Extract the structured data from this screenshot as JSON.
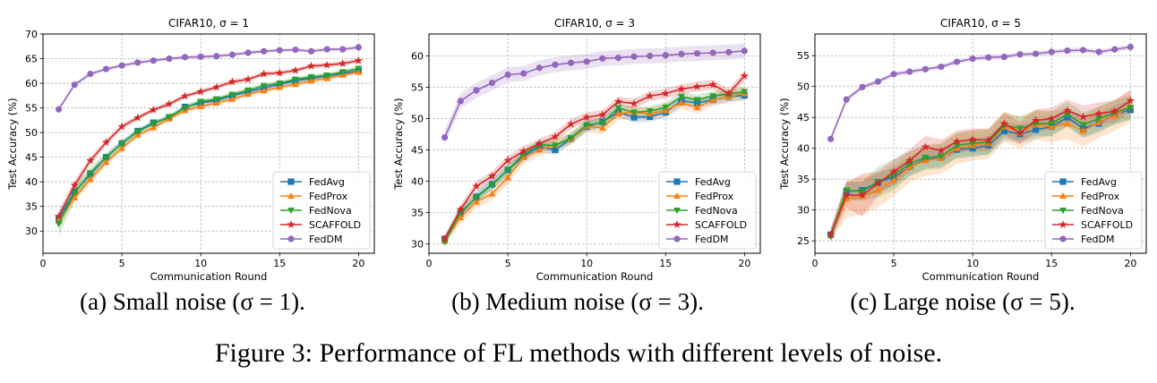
{
  "figure_caption": "Figure 3: Performance of FL methods with different levels of noise.",
  "colors": {
    "FedAvg": "#1f77b4",
    "FedProx": "#ff7f0e",
    "FedNova": "#2ca02c",
    "SCAFFOLD": "#d62728",
    "FedDM": "#9467bd"
  },
  "markers": {
    "FedAvg": "square",
    "FedProx": "triangle-up",
    "FedNova": "triangle-down",
    "SCAFFOLD": "star",
    "FedDM": "circle"
  },
  "subcaptions": [
    "(a) Small noise (σ = 1).",
    "(b) Medium noise (σ = 3).",
    "(c) Large noise (σ = 5)."
  ],
  "chart_data": [
    {
      "type": "line",
      "title": "CIFAR10, σ = 1",
      "xlabel": "Communication Round",
      "ylabel": "Test Accuracy (%)",
      "xlim": [
        0,
        21
      ],
      "ylim": [
        25.5,
        70
      ],
      "xticks": [
        0,
        5,
        10,
        15,
        20
      ],
      "yticks": [
        30,
        35,
        40,
        45,
        50,
        55,
        60,
        65,
        70
      ],
      "grid": true,
      "legend_position": "lower-right",
      "x": [
        1,
        2,
        3,
        4,
        5,
        6,
        7,
        8,
        9,
        10,
        11,
        12,
        13,
        14,
        15,
        16,
        17,
        18,
        19,
        20
      ],
      "series": [
        {
          "name": "FedAvg",
          "values": [
            32.5,
            38.0,
            41.5,
            45.0,
            47.8,
            50.3,
            52.0,
            53.0,
            55.2,
            56.0,
            56.5,
            57.5,
            58.3,
            59.0,
            59.8,
            60.5,
            61.0,
            61.5,
            62.0,
            62.5
          ],
          "band": [
            1.2,
            1.0,
            0.8,
            0.7,
            0.6,
            0.5,
            0.5,
            0.5,
            0.5,
            0.5,
            0.5,
            0.5,
            0.5,
            0.5,
            0.5,
            0.5,
            0.5,
            0.5,
            0.5,
            0.5
          ]
        },
        {
          "name": "FedProx",
          "values": [
            32.0,
            36.8,
            40.5,
            44.0,
            46.8,
            49.5,
            51.0,
            52.8,
            54.5,
            55.3,
            56.0,
            56.8,
            57.8,
            58.5,
            59.2,
            59.8,
            60.5,
            61.0,
            61.7,
            62.3
          ],
          "band": [
            1.2,
            1.0,
            0.8,
            0.7,
            0.6,
            0.5,
            0.5,
            0.5,
            0.5,
            0.5,
            0.5,
            0.5,
            0.5,
            0.5,
            0.5,
            0.5,
            0.5,
            0.5,
            0.5,
            0.5
          ]
        },
        {
          "name": "FedNova",
          "values": [
            31.5,
            37.8,
            41.8,
            45.0,
            47.8,
            50.2,
            51.8,
            53.2,
            55.0,
            56.3,
            56.8,
            57.7,
            58.6,
            59.5,
            60.0,
            60.8,
            61.3,
            61.6,
            62.3,
            63.0
          ],
          "band": [
            2.5,
            1.8,
            1.2,
            0.9,
            0.7,
            0.6,
            0.5,
            0.5,
            0.5,
            0.5,
            0.5,
            0.5,
            0.5,
            0.5,
            0.5,
            0.5,
            0.5,
            0.5,
            0.5,
            0.5
          ]
        },
        {
          "name": "SCAFFOLD",
          "values": [
            33.0,
            39.3,
            44.3,
            48.0,
            51.2,
            53.0,
            54.6,
            55.8,
            57.4,
            58.3,
            59.2,
            60.3,
            60.8,
            61.9,
            62.1,
            62.6,
            63.5,
            63.7,
            64.0,
            64.6
          ],
          "band": [
            1.2,
            1.0,
            0.8,
            0.7,
            0.6,
            0.5,
            0.5,
            0.5,
            0.5,
            0.5,
            0.5,
            0.5,
            0.5,
            0.5,
            0.5,
            0.5,
            0.5,
            0.5,
            0.5,
            0.5
          ]
        },
        {
          "name": "FedDM",
          "values": [
            54.7,
            59.7,
            61.9,
            62.9,
            63.6,
            64.2,
            64.6,
            65.0,
            65.3,
            65.4,
            65.5,
            65.8,
            66.2,
            66.5,
            66.7,
            66.8,
            66.5,
            66.9,
            66.9,
            67.3
          ],
          "band": [
            0.4,
            0.4,
            0.4,
            0.4,
            0.4,
            0.4,
            0.4,
            0.4,
            0.4,
            0.4,
            0.4,
            0.4,
            0.4,
            0.4,
            0.4,
            0.4,
            0.4,
            0.4,
            0.4,
            0.4
          ]
        }
      ]
    },
    {
      "type": "line",
      "title": "CIFAR10, σ = 3",
      "xlabel": "Communication Round",
      "ylabel": "Test Accuracy (%)",
      "xlim": [
        0,
        21
      ],
      "ylim": [
        28.5,
        63.5
      ],
      "xticks": [
        0,
        5,
        10,
        15,
        20
      ],
      "yticks": [
        30,
        35,
        40,
        45,
        50,
        55,
        60
      ],
      "grid": true,
      "legend_position": "lower-right",
      "x": [
        1,
        2,
        3,
        4,
        5,
        6,
        7,
        8,
        9,
        10,
        11,
        12,
        13,
        14,
        15,
        16,
        17,
        18,
        19,
        20
      ],
      "series": [
        {
          "name": "FedAvg",
          "values": [
            30.8,
            34.8,
            37.5,
            39.5,
            41.8,
            44.0,
            45.5,
            45.0,
            46.8,
            48.7,
            49.5,
            51.0,
            50.2,
            50.3,
            51.0,
            52.8,
            52.5,
            53.0,
            53.5,
            53.7
          ],
          "band": [
            0.6,
            0.8,
            0.8,
            0.8,
            0.8,
            0.8,
            0.8,
            0.8,
            0.8,
            0.8,
            0.8,
            0.8,
            0.8,
            0.8,
            0.8,
            0.8,
            0.8,
            0.8,
            0.8,
            0.8
          ]
        },
        {
          "name": "FedProx",
          "values": [
            30.5,
            34.2,
            36.7,
            38.0,
            40.6,
            43.8,
            45.0,
            45.8,
            46.8,
            48.8,
            48.5,
            50.8,
            51.0,
            50.8,
            51.3,
            52.5,
            51.8,
            53.0,
            53.5,
            54.0
          ],
          "band": [
            0.6,
            1.0,
            1.0,
            1.0,
            1.0,
            1.0,
            1.0,
            1.0,
            1.0,
            1.0,
            1.0,
            1.0,
            1.0,
            1.0,
            1.0,
            1.0,
            1.0,
            1.0,
            1.0,
            1.0
          ]
        },
        {
          "name": "FedNova",
          "values": [
            30.3,
            35.0,
            37.4,
            39.4,
            41.8,
            44.3,
            45.8,
            45.7,
            46.9,
            49.0,
            49.3,
            51.7,
            51.0,
            51.2,
            51.8,
            53.5,
            53.0,
            53.6,
            53.9,
            54.3
          ],
          "band": [
            0.6,
            0.8,
            0.8,
            0.8,
            0.8,
            0.8,
            0.8,
            0.8,
            0.8,
            0.8,
            0.8,
            0.8,
            0.8,
            0.8,
            0.8,
            0.8,
            0.8,
            0.8,
            0.8,
            0.8
          ]
        },
        {
          "name": "SCAFFOLD",
          "values": [
            30.8,
            35.5,
            39.2,
            40.8,
            43.3,
            44.8,
            46.0,
            47.1,
            49.1,
            50.2,
            50.6,
            52.7,
            52.4,
            53.6,
            54.0,
            54.7,
            55.1,
            55.4,
            54.0,
            56.8
          ],
          "band": [
            0.6,
            0.8,
            0.8,
            0.8,
            0.8,
            0.8,
            0.8,
            0.8,
            0.8,
            0.8,
            0.8,
            0.8,
            0.8,
            0.8,
            0.8,
            0.8,
            0.8,
            0.8,
            0.8,
            0.8
          ]
        },
        {
          "name": "FedDM",
          "values": [
            47.0,
            52.8,
            54.5,
            55.7,
            57.0,
            57.2,
            58.1,
            58.6,
            58.9,
            59.1,
            59.6,
            59.7,
            59.9,
            60.0,
            60.1,
            60.3,
            60.4,
            60.5,
            60.6,
            60.8
          ],
          "band": [
            1.2,
            1.2,
            1.2,
            1.2,
            1.2,
            1.2,
            1.2,
            1.2,
            1.2,
            1.2,
            1.2,
            1.2,
            1.2,
            1.2,
            1.2,
            1.2,
            1.2,
            1.2,
            1.2,
            1.2
          ]
        }
      ]
    },
    {
      "type": "line",
      "title": "CIFAR10, σ = 5",
      "xlabel": "Communication Round",
      "ylabel": "Test Accuracy (%)",
      "xlim": [
        0,
        21
      ],
      "ylim": [
        23,
        58.5
      ],
      "xticks": [
        0,
        5,
        10,
        15,
        20
      ],
      "yticks": [
        25,
        30,
        35,
        40,
        45,
        50,
        55
      ],
      "grid": true,
      "legend_position": "lower-right",
      "x": [
        1,
        2,
        3,
        4,
        5,
        6,
        7,
        8,
        9,
        10,
        11,
        12,
        13,
        14,
        15,
        16,
        17,
        18,
        19,
        20
      ],
      "series": [
        {
          "name": "FedAvg",
          "values": [
            26.0,
            33.0,
            33.2,
            34.5,
            35.3,
            37.0,
            38.2,
            38.5,
            39.8,
            40.0,
            40.5,
            42.8,
            42.3,
            43.0,
            43.5,
            45.0,
            43.2,
            44.0,
            45.5,
            46.2
          ],
          "band": [
            1.0,
            1.5,
            1.5,
            1.5,
            1.5,
            1.5,
            1.5,
            1.5,
            1.5,
            1.5,
            1.5,
            1.5,
            1.5,
            1.5,
            1.5,
            1.5,
            1.5,
            1.5,
            1.5,
            1.5
          ]
        },
        {
          "name": "FedProx",
          "values": [
            26.0,
            31.8,
            32.3,
            33.2,
            34.8,
            37.0,
            38.0,
            38.4,
            40.0,
            40.5,
            40.8,
            43.5,
            42.5,
            43.8,
            43.5,
            44.0,
            42.8,
            44.2,
            45.3,
            46.8
          ],
          "band": [
            1.0,
            3.0,
            3.0,
            2.8,
            2.5,
            2.5,
            2.5,
            2.5,
            2.5,
            2.5,
            2.5,
            2.5,
            2.5,
            2.5,
            2.5,
            2.5,
            2.5,
            2.5,
            2.5,
            2.5
          ]
        },
        {
          "name": "FedNova",
          "values": [
            25.7,
            33.2,
            33.0,
            34.5,
            35.7,
            37.5,
            38.5,
            38.7,
            40.5,
            40.8,
            41.0,
            43.7,
            43.2,
            44.0,
            44.0,
            45.5,
            43.8,
            44.8,
            45.8,
            46.6
          ],
          "band": [
            1.0,
            1.5,
            1.5,
            2.5,
            2.5,
            2.0,
            2.0,
            2.0,
            2.0,
            2.0,
            2.0,
            2.0,
            2.0,
            2.0,
            2.0,
            2.0,
            2.0,
            2.0,
            2.0,
            2.0
          ]
        },
        {
          "name": "SCAFFOLD",
          "values": [
            26.0,
            32.4,
            32.4,
            34.3,
            36.2,
            38.0,
            40.2,
            39.6,
            41.1,
            41.4,
            41.3,
            44.0,
            42.5,
            44.5,
            44.8,
            46.1,
            45.1,
            45.6,
            46.0,
            47.7
          ],
          "band": [
            1.0,
            2.0,
            3.5,
            2.0,
            2.0,
            1.8,
            1.8,
            1.8,
            1.8,
            1.8,
            1.8,
            1.8,
            1.8,
            1.8,
            1.8,
            1.8,
            1.8,
            1.8,
            1.8,
            1.8
          ]
        },
        {
          "name": "FedDM",
          "values": [
            41.5,
            47.9,
            49.9,
            50.8,
            52.0,
            52.4,
            52.8,
            53.2,
            54.0,
            54.5,
            54.7,
            54.8,
            55.2,
            55.3,
            55.6,
            55.8,
            55.9,
            55.6,
            56.0,
            56.4
          ],
          "band": [
            0.4,
            0.4,
            0.4,
            0.4,
            0.4,
            0.4,
            0.4,
            0.4,
            0.4,
            0.4,
            0.4,
            0.4,
            0.4,
            0.4,
            0.4,
            0.4,
            0.4,
            0.4,
            0.4,
            0.4
          ]
        }
      ]
    }
  ]
}
